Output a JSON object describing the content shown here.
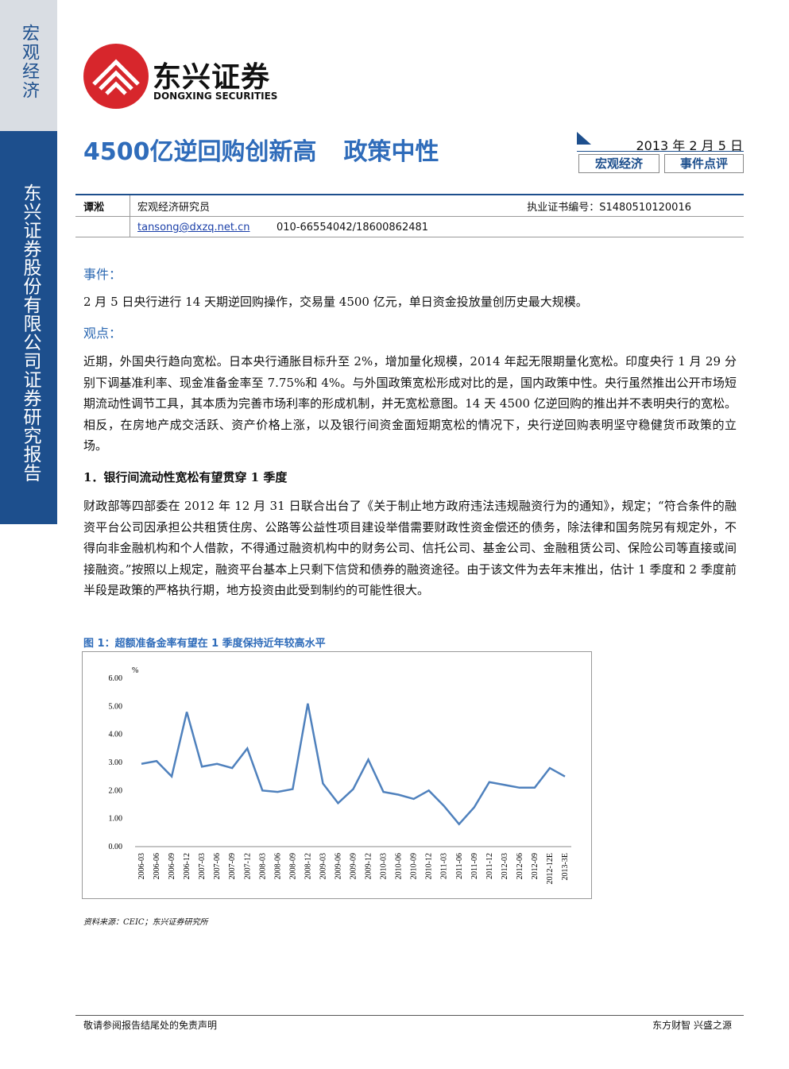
{
  "sidebar": {
    "top": "宏观经济",
    "main": "东兴证券股份有限公司证券研究报告"
  },
  "logo": {
    "name": "东兴证券",
    "en": "DONGXING SECURITIES"
  },
  "title": {
    "main": "4500亿逆回购创新高",
    "sub": "政策中性"
  },
  "meta": {
    "date": "2013 年 2 月 5 日",
    "tags": [
      "宏观经济",
      "事件点评"
    ]
  },
  "author": {
    "name": "谭淞",
    "role": "宏观经济研究员",
    "cert": "执业证书编号：S1480510120016",
    "email": "tansong@dxzq.net.cn",
    "phone": "010-66554042/18600862481"
  },
  "sections": [
    {
      "heading": "事件：",
      "text": "2 月 5 日央行进行 14 天期逆回购操作，交易量 4500 亿元，单日资金投放量创历史最大规模。"
    },
    {
      "heading": "观点：",
      "text": "近期，外国央行趋向宽松。日本央行通胀目标升至 2%，增加量化规模，2014 年起无限期量化宽松。印度央行 1 月 29 分别下调基准利率、现金准备金率至 7.75%和 4%。与外国政策宽松形成对比的是，国内政策中性。央行虽然推出公开市场短期流动性调节工具，其本质为完善市场利率的形成机制，并无宽松意图。14 天 4500 亿逆回购的推出并不表明央行的宽松。相反，在房地产成交活跃、资产价格上涨，以及银行间资金面短期宽松的情况下，央行逆回购表明坚守稳健货币政策的立场。"
    },
    {
      "heading": "1．银行间流动性宽松有望贯穿 1 季度",
      "text": "财政部等四部委在 2012 年 12 月 31 日联合出台了《关于制止地方政府违法违规融资行为的通知》，规定；“符合条件的融资平台公司因承担公共租赁住房、公路等公益性项目建设举借需要财政性资金偿还的债务，除法律和国务院另有规定外，不得向非金融机构和个人借款，不得通过融资机构中的财务公司、信托公司、基金公司、金融租赁公司、保险公司等直接或间接融资。”按照以上规定，融资平台基本上只剩下信贷和债券的融资途径。由于该文件为去年末推出，估计 1 季度和 2 季度前半段是政策的严格执行期，地方投资由此受到制约的可能性很大。"
    }
  ],
  "figure": {
    "caption": "图 1：超额准备金率有望在 1 季度保持近年较高水平",
    "source": "资料来源：CEIC；东兴证券研究所"
  },
  "chart_data": {
    "type": "line",
    "y_unit": "%",
    "color": "#4f81bd",
    "categories": [
      "2006-03",
      "2006-06",
      "2006-09",
      "2006-12",
      "2007-03",
      "2007-06",
      "2007-09",
      "2007-12",
      "2008-03",
      "2008-06",
      "2008-09",
      "2008-12",
      "2009-03",
      "2009-06",
      "2009-09",
      "2009-12",
      "2010-03",
      "2010-06",
      "2010-09",
      "2010-12",
      "2011-03",
      "2011-06",
      "2011-09",
      "2011-12",
      "2012-03",
      "2012-06",
      "2012-09",
      "2012-12E",
      "2013-3E"
    ],
    "values": [
      2.95,
      3.05,
      2.5,
      4.8,
      2.85,
      2.95,
      2.8,
      3.5,
      2.0,
      1.95,
      2.05,
      5.1,
      2.25,
      1.55,
      2.05,
      3.1,
      1.95,
      1.85,
      1.7,
      2.0,
      1.45,
      0.8,
      1.4,
      2.3,
      2.2,
      2.1,
      2.1,
      2.8,
      2.5
    ],
    "ylim": [
      0,
      6
    ],
    "yticks": [
      {
        "value": 0,
        "label": "0.00"
      },
      {
        "value": 1,
        "label": "1.00"
      },
      {
        "value": 2,
        "label": "2.00"
      },
      {
        "value": 3,
        "label": "3.00"
      },
      {
        "value": 4,
        "label": "4.00"
      },
      {
        "value": 5,
        "label": "5.00"
      },
      {
        "value": 6,
        "label": "6.00"
      }
    ]
  },
  "footer": {
    "left": "敬请参阅报告结尾处的免责声明",
    "right": "东方财智 兴盛之源"
  }
}
